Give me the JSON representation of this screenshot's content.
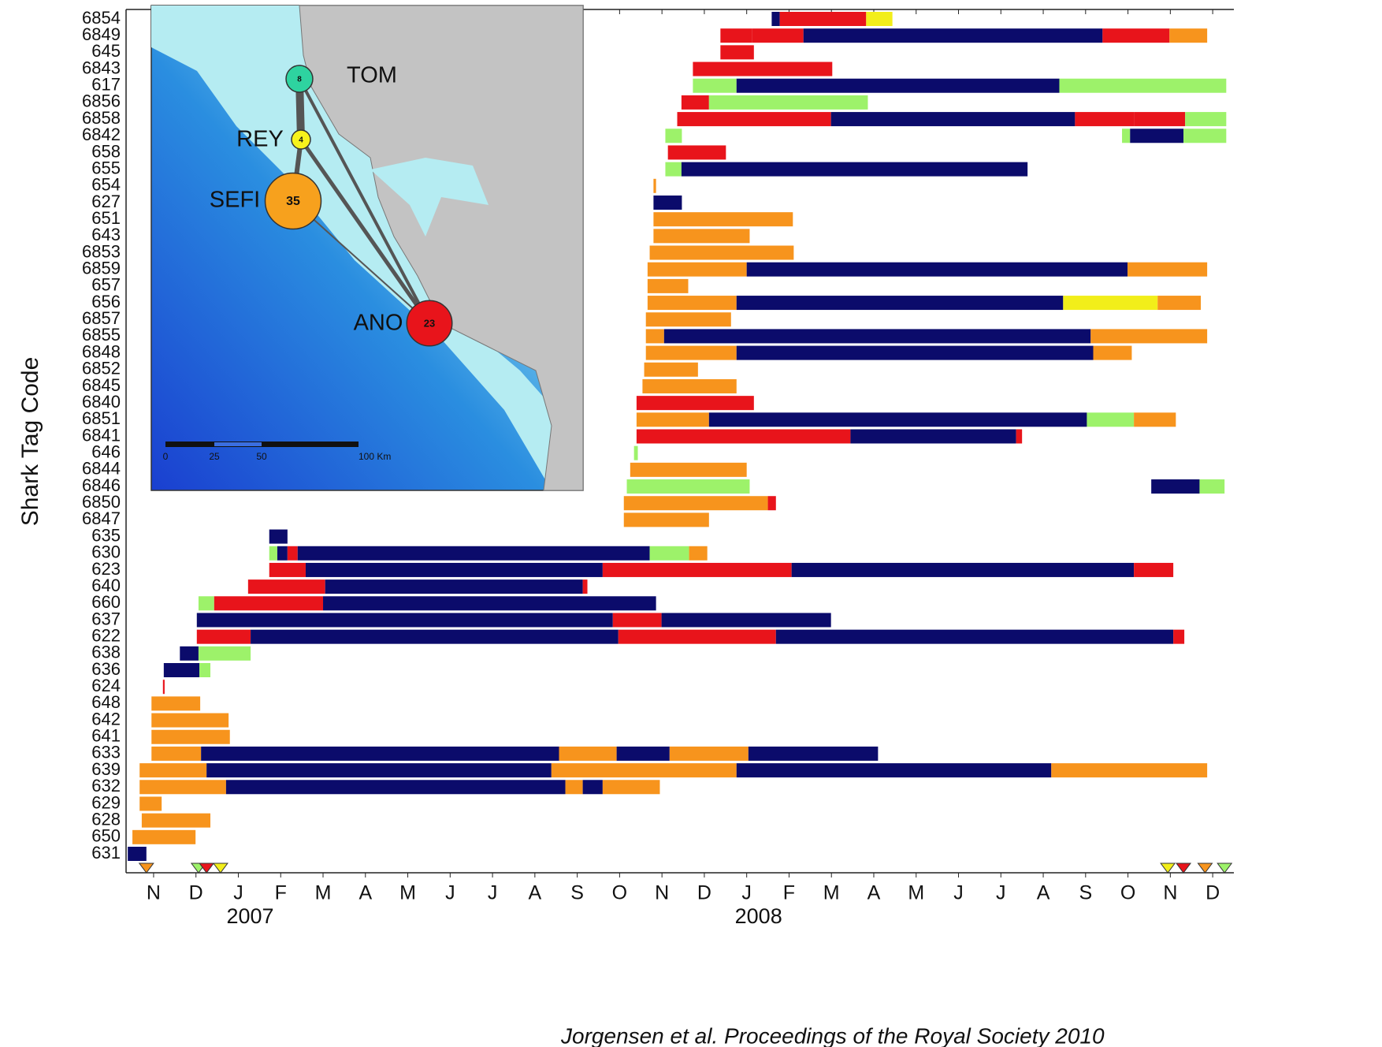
{
  "chart_data": {
    "type": "gantt",
    "ylabel": "Shark Tag Code",
    "palette": [
      "#0b0b6b",
      "#f7941d",
      "#e8141b",
      "#f2ee1a",
      "#9df26a"
    ],
    "xlim": [
      -0.15,
      26
    ],
    "xticks": [
      {
        "value": 0.5,
        "label": "N"
      },
      {
        "value": 1.5,
        "label": "D"
      },
      {
        "value": 2.5,
        "label": "J"
      },
      {
        "value": 3.5,
        "label": "F"
      },
      {
        "value": 4.5,
        "label": "M"
      },
      {
        "value": 5.5,
        "label": "A"
      },
      {
        "value": 6.5,
        "label": "M"
      },
      {
        "value": 7.5,
        "label": "J"
      },
      {
        "value": 8.5,
        "label": "J"
      },
      {
        "value": 9.5,
        "label": "A"
      },
      {
        "value": 10.5,
        "label": "S"
      },
      {
        "value": 11.5,
        "label": "O"
      },
      {
        "value": 12.5,
        "label": "N"
      },
      {
        "value": 13.5,
        "label": "D"
      },
      {
        "value": 14.5,
        "label": "J"
      },
      {
        "value": 15.5,
        "label": "F"
      },
      {
        "value": 16.5,
        "label": "M"
      },
      {
        "value": 17.5,
        "label": "A"
      },
      {
        "value": 18.5,
        "label": "M"
      },
      {
        "value": 19.5,
        "label": "J"
      },
      {
        "value": 20.5,
        "label": "J"
      },
      {
        "value": 21.5,
        "label": "A"
      },
      {
        "value": 22.5,
        "label": "S"
      },
      {
        "value": 23.5,
        "label": "O"
      },
      {
        "value": 24.5,
        "label": "N"
      },
      {
        "value": 25.5,
        "label": "D"
      }
    ],
    "years": [
      "2007",
      "2008"
    ],
    "caption": "Jorgensen et al. Proceedings of the Royal Society 2010",
    "categories": [
      "6854",
      "6849",
      "645",
      "6843",
      "617",
      "6856",
      "6858",
      "6842",
      "658",
      "655",
      "654",
      "627",
      "651",
      "643",
      "6853",
      "6859",
      "657",
      "656",
      "6857",
      "6855",
      "6848",
      "6852",
      "6845",
      "6840",
      "6851",
      "6841",
      "646",
      "6844",
      "6846",
      "6850",
      "6847",
      "635",
      "630",
      "623",
      "640",
      "660",
      "637",
      "622",
      "638",
      "636",
      "624",
      "648",
      "642",
      "641",
      "633",
      "639",
      "632",
      "629",
      "628",
      "650",
      "631"
    ],
    "segments": [
      [
        [
          15.09,
          15.28,
          0
        ],
        [
          15.28,
          17.32,
          2
        ],
        [
          17.32,
          17.94,
          3
        ]
      ],
      [
        [
          13.88,
          14.63,
          2
        ],
        [
          14.63,
          15.84,
          2
        ],
        [
          15.84,
          22.9,
          0
        ],
        [
          22.9,
          24.48,
          2
        ],
        [
          24.48,
          25.37,
          1
        ]
      ],
      [
        [
          13.88,
          14.67,
          2
        ]
      ],
      [
        [
          13.23,
          16.52,
          2
        ]
      ],
      [
        [
          13.23,
          14.26,
          4
        ],
        [
          14.26,
          21.88,
          0
        ],
        [
          21.88,
          25.82,
          4
        ]
      ],
      [
        [
          12.96,
          13.61,
          2
        ],
        [
          13.61,
          17.36,
          4
        ]
      ],
      [
        [
          12.86,
          16.49,
          2
        ],
        [
          16.49,
          22.25,
          0
        ],
        [
          22.25,
          23.64,
          2
        ],
        [
          23.64,
          24.85,
          2
        ],
        [
          24.85,
          25.82,
          4
        ]
      ],
      [
        [
          12.58,
          12.97,
          4
        ],
        [
          23.36,
          23.55,
          4
        ],
        [
          23.55,
          24.81,
          0
        ],
        [
          24.81,
          25.82,
          4
        ]
      ],
      [
        [
          12.64,
          14.01,
          2
        ]
      ],
      [
        [
          12.58,
          12.96,
          4
        ],
        [
          12.96,
          21.13,
          0
        ]
      ],
      [
        [
          12.3,
          12.36,
          1
        ]
      ],
      [
        [
          12.3,
          12.97,
          0
        ]
      ],
      [
        [
          12.3,
          15.59,
          1
        ]
      ],
      [
        [
          12.3,
          14.57,
          1
        ]
      ],
      [
        [
          12.21,
          15.61,
          1
        ]
      ],
      [
        [
          12.16,
          14.5,
          1
        ],
        [
          14.5,
          23.49,
          0
        ],
        [
          23.49,
          25.37,
          1
        ]
      ],
      [
        [
          12.16,
          13.12,
          1
        ]
      ],
      [
        [
          12.16,
          14.26,
          1
        ],
        [
          14.26,
          21.97,
          0
        ],
        [
          21.97,
          24.2,
          3
        ],
        [
          24.2,
          25.22,
          1
        ]
      ],
      [
        [
          12.12,
          14.13,
          1
        ]
      ],
      [
        [
          12.12,
          12.55,
          1
        ],
        [
          12.55,
          22.62,
          0
        ],
        [
          22.62,
          25.37,
          1
        ]
      ],
      [
        [
          12.12,
          14.26,
          1
        ],
        [
          14.26,
          22.68,
          0
        ],
        [
          22.68,
          23.59,
          1
        ]
      ],
      [
        [
          12.08,
          13.35,
          1
        ]
      ],
      [
        [
          12.04,
          14.26,
          1
        ]
      ],
      [
        [
          11.9,
          14.67,
          2
        ]
      ],
      [
        [
          11.9,
          13.61,
          1
        ],
        [
          13.61,
          22.53,
          0
        ],
        [
          22.53,
          23.64,
          4
        ],
        [
          23.64,
          24.63,
          1
        ]
      ],
      [
        [
          11.9,
          16.95,
          2
        ],
        [
          16.95,
          20.86,
          0
        ],
        [
          20.86,
          21.0,
          2
        ]
      ],
      [
        [
          11.84,
          11.93,
          4
        ]
      ],
      [
        [
          11.75,
          14.5,
          1
        ]
      ],
      [
        [
          11.67,
          14.57,
          4
        ],
        [
          24.05,
          25.19,
          0
        ],
        [
          25.19,
          25.78,
          4
        ]
      ],
      [
        [
          11.6,
          15.0,
          1
        ],
        [
          15.0,
          15.19,
          2
        ]
      ],
      [
        [
          11.6,
          13.61,
          1
        ]
      ],
      [
        [
          3.23,
          3.66,
          0
        ]
      ],
      [
        [
          3.23,
          3.42,
          4
        ],
        [
          3.42,
          3.66,
          0
        ],
        [
          3.66,
          3.9,
          2
        ],
        [
          3.9,
          12.21,
          0
        ],
        [
          12.21,
          13.14,
          4
        ],
        [
          13.14,
          13.57,
          1
        ]
      ],
      [
        [
          3.23,
          4.09,
          2
        ],
        [
          4.09,
          11.1,
          0
        ],
        [
          11.1,
          15.56,
          2
        ],
        [
          15.56,
          23.64,
          0
        ],
        [
          23.64,
          24.57,
          2
        ]
      ],
      [
        [
          2.73,
          4.55,
          2
        ],
        [
          4.55,
          10.63,
          0
        ],
        [
          10.63,
          10.74,
          2
        ]
      ],
      [
        [
          1.56,
          1.93,
          4
        ],
        [
          1.93,
          4.5,
          2
        ],
        [
          4.5,
          12.36,
          0
        ]
      ],
      [
        [
          1.52,
          11.34,
          0
        ],
        [
          11.34,
          12.49,
          2
        ],
        [
          12.49,
          16.49,
          0
        ]
      ],
      [
        [
          1.52,
          2.79,
          2
        ],
        [
          2.79,
          11.47,
          0
        ],
        [
          11.47,
          15.19,
          2
        ],
        [
          15.19,
          24.57,
          0
        ],
        [
          24.57,
          24.83,
          2
        ]
      ],
      [
        [
          1.12,
          1.56,
          0
        ],
        [
          1.56,
          2.79,
          4
        ]
      ],
      [
        [
          0.74,
          1.58,
          0
        ],
        [
          1.58,
          1.84,
          4
        ]
      ],
      [
        [
          0.72,
          0.76,
          2
        ]
      ],
      [
        [
          0.45,
          1.6,
          1
        ]
      ],
      [
        [
          0.45,
          2.27,
          1
        ]
      ],
      [
        [
          0.45,
          2.3,
          1
        ]
      ],
      [
        [
          0.45,
          1.62,
          1
        ],
        [
          1.62,
          10.07,
          0
        ],
        [
          10.07,
          11.43,
          1
        ],
        [
          11.43,
          12.68,
          0
        ],
        [
          12.68,
          14.54,
          1
        ],
        [
          14.54,
          17.6,
          0
        ]
      ],
      [
        [
          0.17,
          1.75,
          1
        ],
        [
          1.75,
          9.89,
          0
        ],
        [
          9.89,
          14.26,
          1
        ],
        [
          14.26,
          21.69,
          0
        ],
        [
          21.69,
          25.37,
          1
        ]
      ],
      [
        [
          0.17,
          2.21,
          1
        ],
        [
          2.21,
          10.22,
          0
        ],
        [
          10.22,
          10.63,
          1
        ],
        [
          10.63,
          11.1,
          0
        ],
        [
          11.1,
          12.45,
          1
        ]
      ],
      [
        [
          0.17,
          0.69,
          1
        ]
      ],
      [
        [
          0.22,
          1.84,
          1
        ]
      ],
      [
        [
          0,
          1.49,
          1
        ]
      ],
      [
        [
          -0.11,
          0.33,
          0
        ]
      ]
    ],
    "markers": [
      [
        0.33,
        1
      ],
      [
        1.56,
        4
      ],
      [
        1.75,
        2
      ],
      [
        2.08,
        3
      ],
      [
        24.44,
        3
      ],
      [
        24.81,
        2
      ],
      [
        25.32,
        1
      ],
      [
        25.78,
        4
      ]
    ],
    "map": {
      "sites": [
        {
          "name": "TOM",
          "count": 8,
          "color": "#2ed3a0"
        },
        {
          "name": "REY",
          "count": 4,
          "color": "#f7f21c"
        },
        {
          "name": "SEFI",
          "count": 35,
          "color": "#f7a11d"
        },
        {
          "name": "ANO",
          "count": 23,
          "color": "#e8141b"
        }
      ],
      "scale_labels": [
        "0",
        "25",
        "50",
        "100 Km"
      ]
    }
  }
}
